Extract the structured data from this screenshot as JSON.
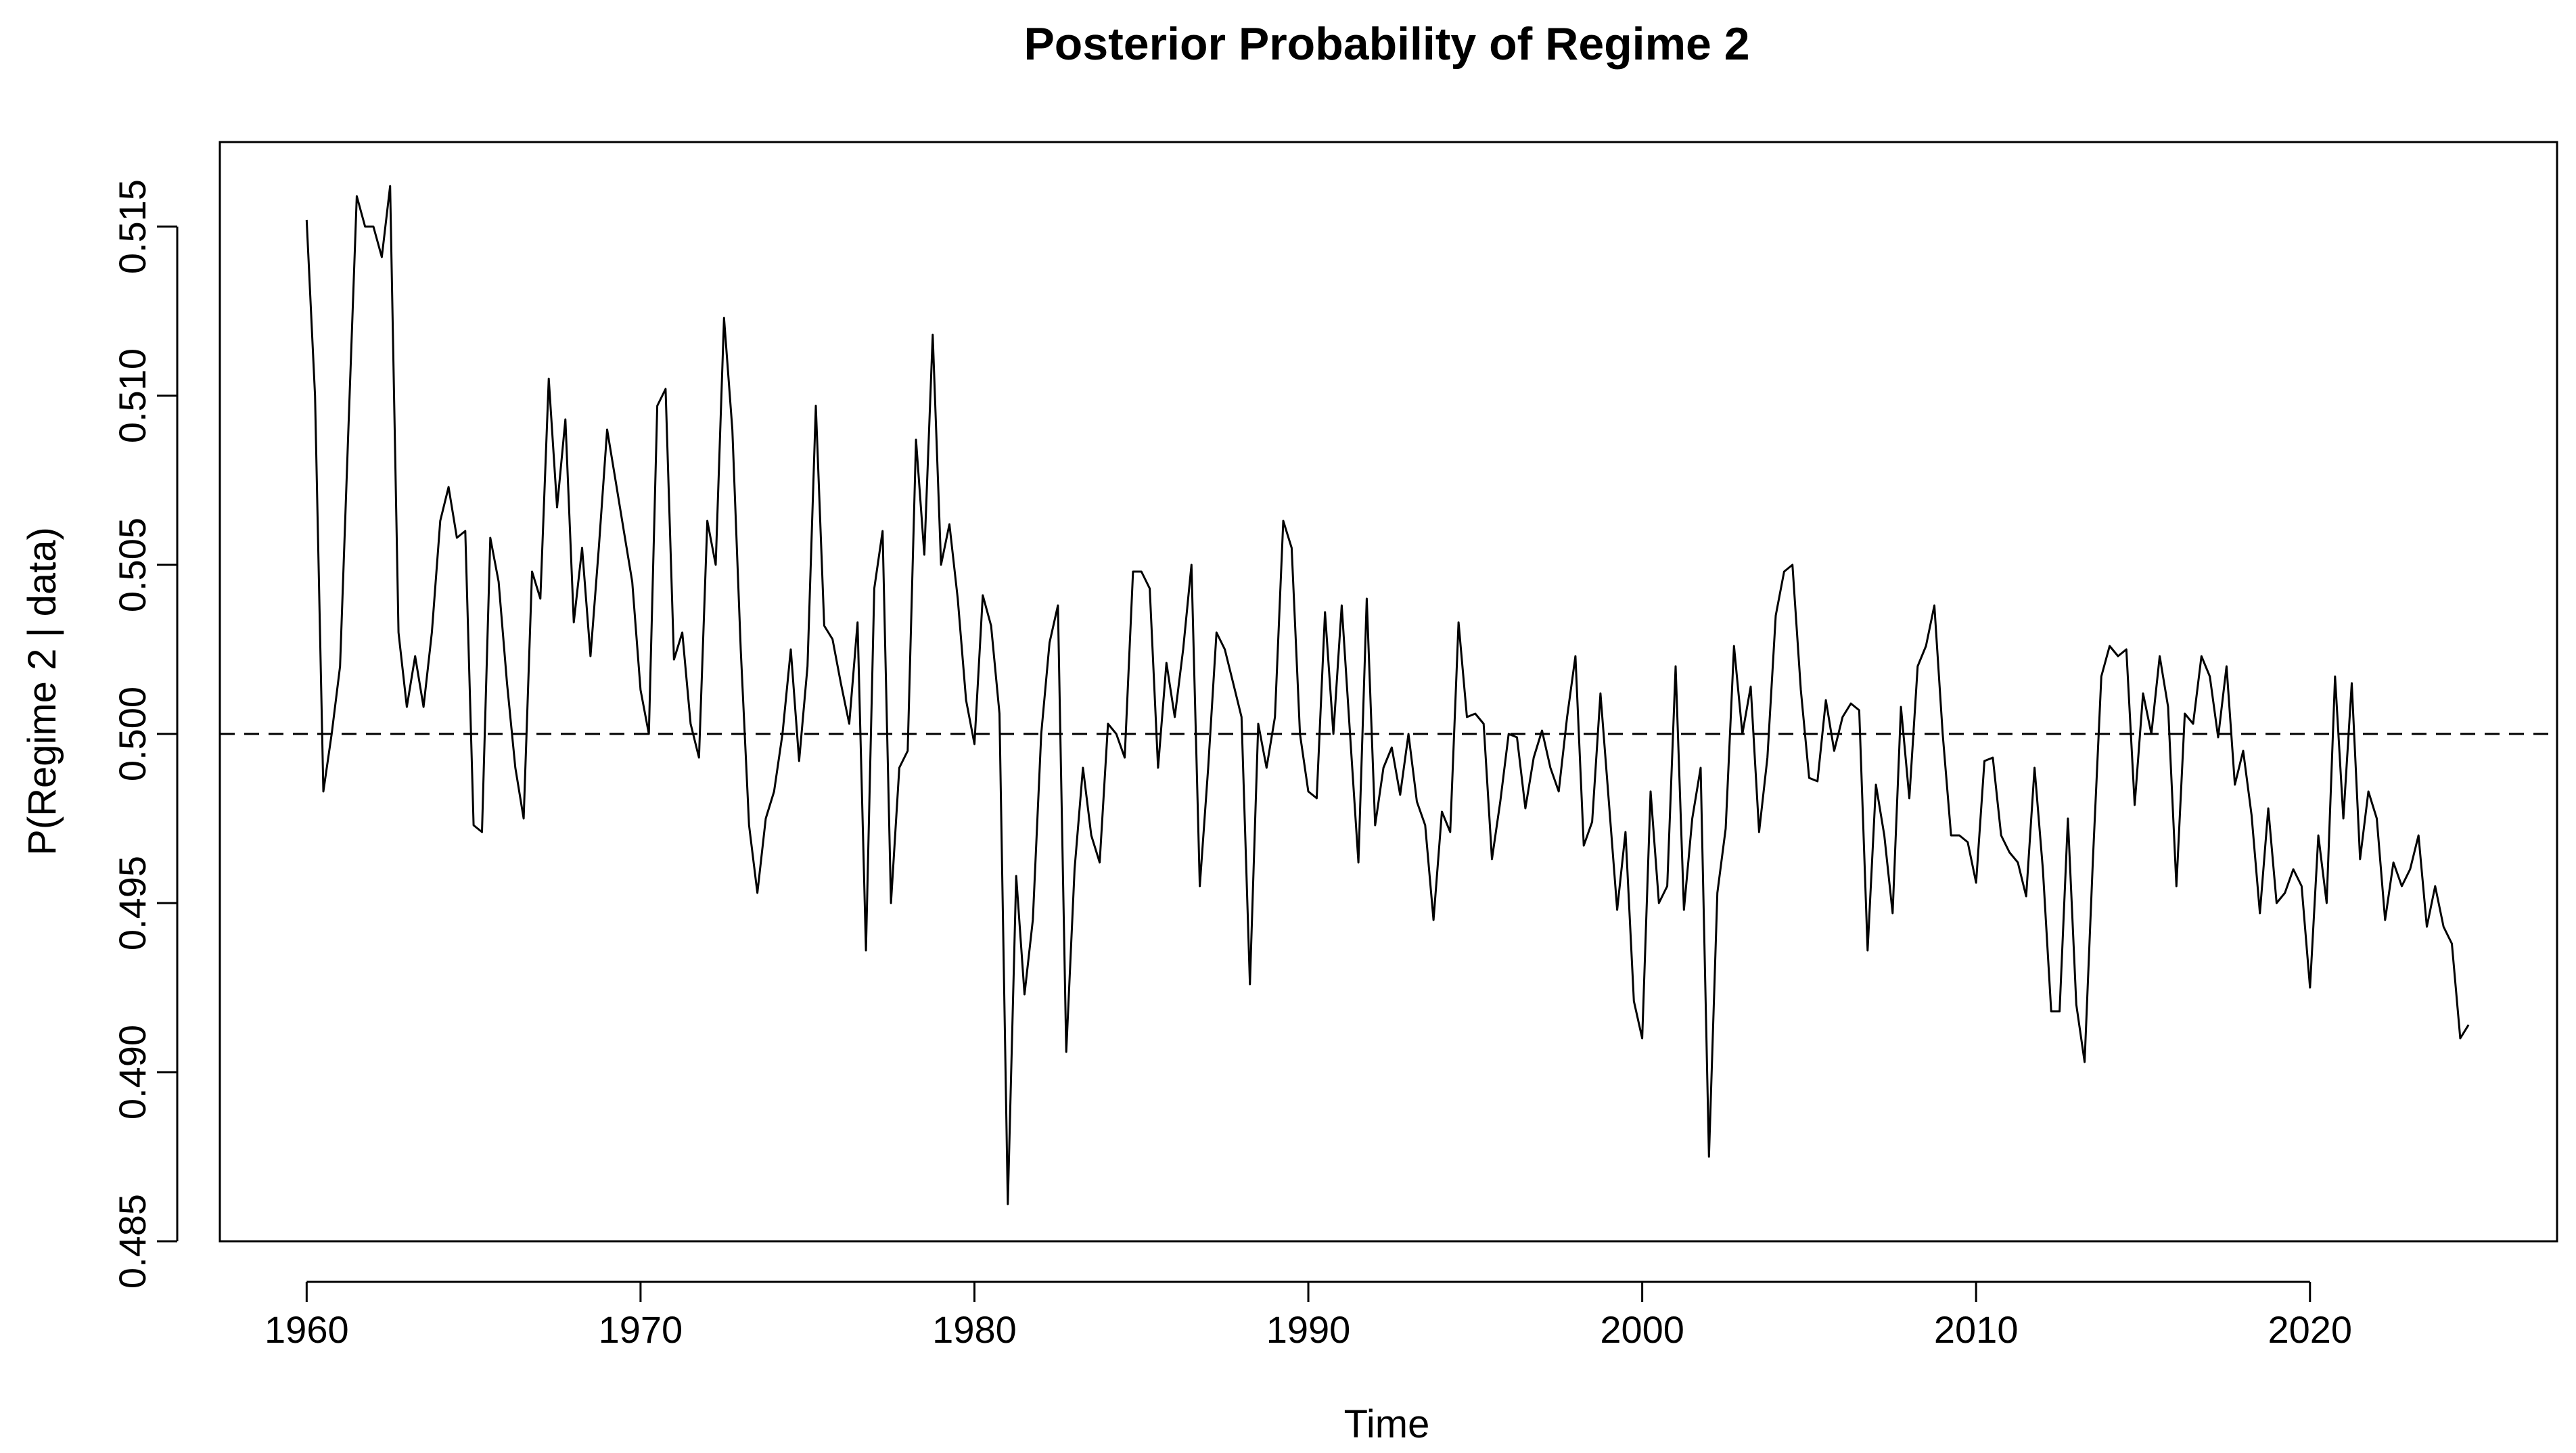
{
  "chart_data": {
    "type": "line",
    "title": "Posterior Probability of Regime 2",
    "xlabel": "Time",
    "ylabel": "P(Regime 2 | data)",
    "xlim": [
      1957.4,
      1977.4
    ],
    "ylim": [
      0.485,
      0.5175
    ],
    "x_ticks": [
      1960,
      1970,
      1980,
      1990,
      2000,
      2010,
      2020
    ],
    "x_tick_labels": [
      "1960",
      "1970",
      "1980",
      "1990",
      "2000",
      "2010",
      "2020"
    ],
    "y_ticks": [
      0.485,
      0.49,
      0.495,
      0.5,
      0.505,
      0.51,
      0.515
    ],
    "y_tick_labels": [
      "0.485",
      "0.490",
      "0.495",
      "0.500",
      "0.505",
      "0.510",
      "0.515"
    ],
    "reference_line": {
      "y": 0.5,
      "style": "dashed"
    },
    "grid": false,
    "legend": "none",
    "series": [
      {
        "x_start": 1960.0,
        "x_step": 0.25,
        "values": [
          0.5152,
          0.51,
          0.4983,
          0.5,
          0.502,
          0.509,
          0.5159,
          0.515,
          0.515,
          0.5141,
          0.5162,
          0.503,
          0.5008,
          0.5023,
          0.5008,
          0.503,
          0.5063,
          0.5073,
          0.5058,
          0.506,
          0.4973,
          0.4971,
          0.5058,
          0.5045,
          0.5015,
          0.499,
          0.4975,
          0.5048,
          0.504,
          0.5105,
          0.5067,
          0.5093,
          0.5033,
          0.5055,
          0.5023,
          0.5055,
          0.509,
          0.5075,
          0.506,
          0.5045,
          0.5013,
          0.5,
          0.5097,
          0.5102,
          0.5022,
          0.503,
          0.5003,
          0.4993,
          0.5063,
          0.505,
          0.5123,
          0.509,
          0.5025,
          0.4973,
          0.4953,
          0.4975,
          0.4983,
          0.5,
          0.5025,
          0.4992,
          0.502,
          0.5097,
          0.5032,
          0.5028,
          0.5015,
          0.5003,
          0.5033,
          0.4936,
          0.5043,
          0.506,
          0.495,
          0.499,
          0.4995,
          0.5087,
          0.5053,
          0.5118,
          0.505,
          0.5062,
          0.504,
          0.501,
          0.4997,
          0.5041,
          0.5032,
          0.5006,
          0.4861,
          0.4958,
          0.4923,
          0.4945,
          0.5,
          0.5027,
          0.5038,
          0.4906,
          0.496,
          0.499,
          0.497,
          0.4962,
          0.5003,
          0.5,
          0.4993,
          0.5048,
          0.5048,
          0.5043,
          0.499,
          0.5021,
          0.5005,
          0.5025,
          0.505,
          0.4955,
          0.499,
          0.503,
          0.5025,
          0.5015,
          0.5005,
          0.4926,
          0.5003,
          0.499,
          0.5005,
          0.5063,
          0.5055,
          0.5,
          0.4983,
          0.4981,
          0.5036,
          0.5,
          0.5038,
          0.5,
          0.4962,
          0.504,
          0.4973,
          0.499,
          0.4996,
          0.4982,
          0.5,
          0.498,
          0.4973,
          0.4945,
          0.4977,
          0.4971,
          0.5033,
          0.5005,
          0.5006,
          0.5003,
          0.4963,
          0.498,
          0.5,
          0.4999,
          0.4978,
          0.4993,
          0.5001,
          0.499,
          0.4983,
          0.5005,
          0.5023,
          0.4967,
          0.4974,
          0.5012,
          0.498,
          0.4948,
          0.4971,
          0.4921,
          0.491,
          0.4983,
          0.495,
          0.4955,
          0.502,
          0.4948,
          0.4975,
          0.499,
          0.4875,
          0.4953,
          0.4972,
          0.5026,
          0.5,
          0.5014,
          0.4971,
          0.4993,
          0.5035,
          0.5048,
          0.505,
          0.5013,
          0.4987,
          0.4986,
          0.501,
          0.4995,
          0.5005,
          0.5009,
          0.5007,
          0.4936,
          0.4985,
          0.497,
          0.4947,
          0.5008,
          0.4981,
          0.502,
          0.5026,
          0.5038,
          0.5,
          0.497,
          0.497,
          0.4968,
          0.4956,
          0.4992,
          0.4993,
          0.497,
          0.4965,
          0.4962,
          0.4952,
          0.499,
          0.496,
          0.4918,
          0.4918,
          0.4975,
          0.492,
          0.4903,
          0.4963,
          0.5017,
          0.5026,
          0.5023,
          0.5025,
          0.4979,
          0.5012,
          0.5,
          0.5023,
          0.5008,
          0.4955,
          0.5006,
          0.5003,
          0.5023,
          0.5017,
          0.4999,
          0.502,
          0.4985,
          0.4995,
          0.4976,
          0.4947,
          0.4978,
          0.495,
          0.4953,
          0.496,
          0.4955,
          0.4925,
          0.497,
          0.495,
          0.5017,
          0.4975,
          0.5015,
          0.4963,
          0.4983,
          0.4975,
          0.4945,
          0.4962,
          0.4955,
          0.496,
          0.497,
          0.4943,
          0.4955,
          0.4943,
          0.4938,
          0.491,
          0.4914
        ]
      }
    ]
  }
}
